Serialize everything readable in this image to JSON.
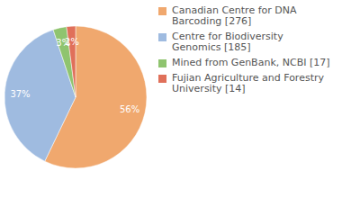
{
  "chart_data": {
    "type": "pie",
    "categories": [
      "Canadian Centre for DNA Barcoding [276]",
      "Centre for Biodiversity Genomics [185]",
      "Mined from GenBank, NCBI [17]",
      "Fujian Agriculture and Forestry University [14]"
    ],
    "values": [
      56,
      37,
      3,
      2
    ],
    "value_labels": [
      "56%",
      "37%",
      "3%",
      "2%"
    ],
    "colors": [
      "#f0a86e",
      "#9fbbe0",
      "#8fc46f",
      "#e0705a"
    ],
    "data_labels": true,
    "legend": "right"
  }
}
